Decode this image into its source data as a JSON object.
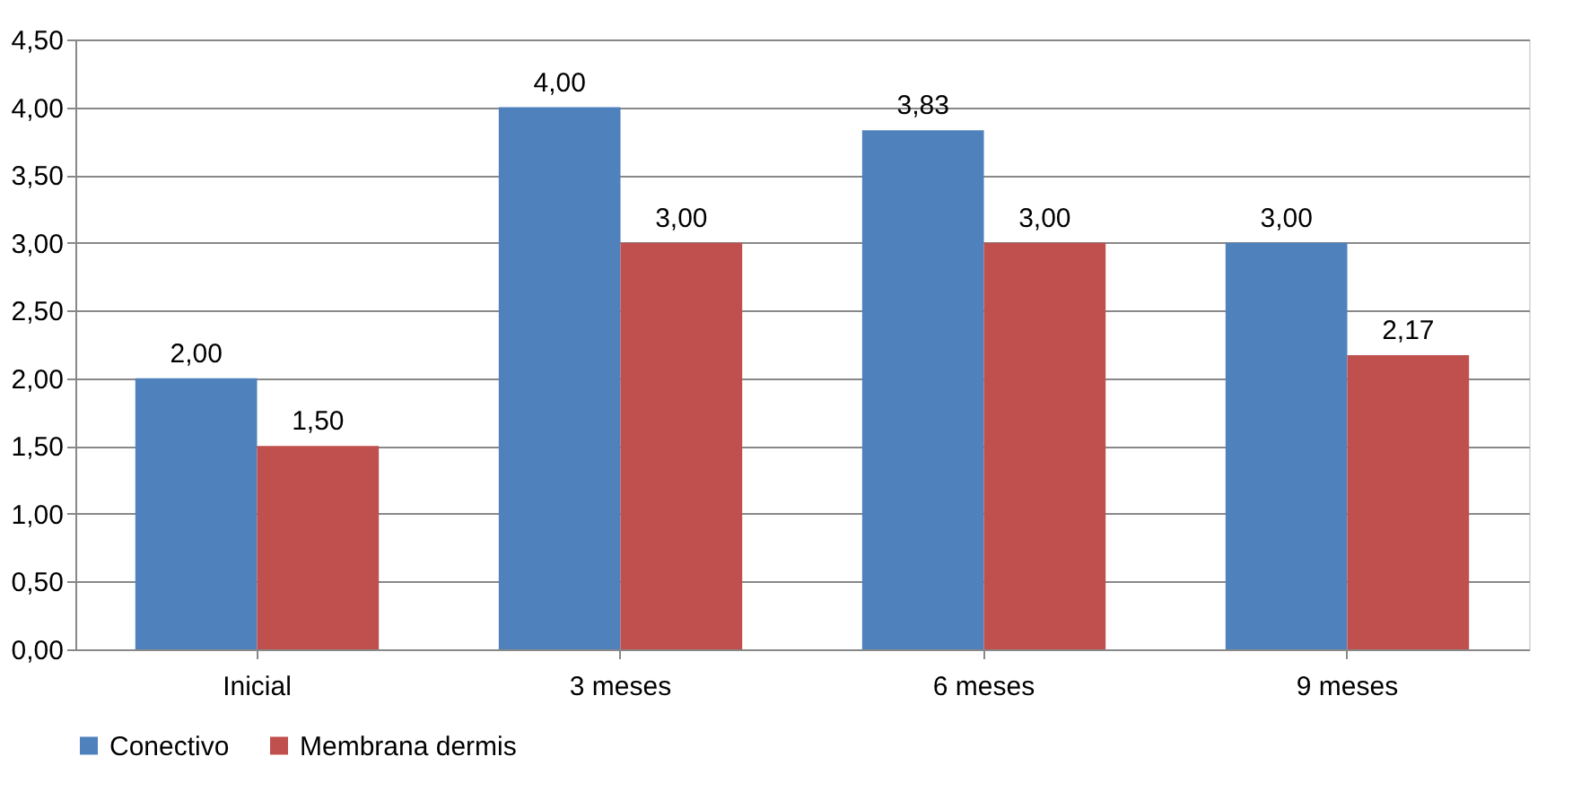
{
  "chart_data": {
    "type": "bar",
    "categories": [
      "Inicial",
      "3 meses",
      "6 meses",
      "9 meses"
    ],
    "series": [
      {
        "name": "Conectivo",
        "color": "#4f81bd",
        "values": [
          2.0,
          4.0,
          3.83,
          3.0
        ],
        "value_labels": [
          "2,00",
          "4,00",
          "3,83",
          "3,00"
        ]
      },
      {
        "name": "Membrana dermis",
        "color": "#c0504d",
        "values": [
          1.5,
          3.0,
          3.0,
          2.17
        ],
        "value_labels": [
          "1,50",
          "3,00",
          "3,00",
          "2,17"
        ]
      }
    ],
    "ylim": [
      0,
      4.5
    ],
    "yticks": [
      {
        "value": 0,
        "label": "0,00"
      },
      {
        "value": 0.5,
        "label": "0,50"
      },
      {
        "value": 1,
        "label": "1,00"
      },
      {
        "value": 1.5,
        "label": "1,50"
      },
      {
        "value": 2,
        "label": "2,00"
      },
      {
        "value": 2.5,
        "label": "2,50"
      },
      {
        "value": 3,
        "label": "3,00"
      },
      {
        "value": 3.5,
        "label": "3,50"
      },
      {
        "value": 4,
        "label": "4,00"
      },
      {
        "value": 4.5,
        "label": "4,50"
      }
    ],
    "grid": "y",
    "legend": "bottom"
  }
}
